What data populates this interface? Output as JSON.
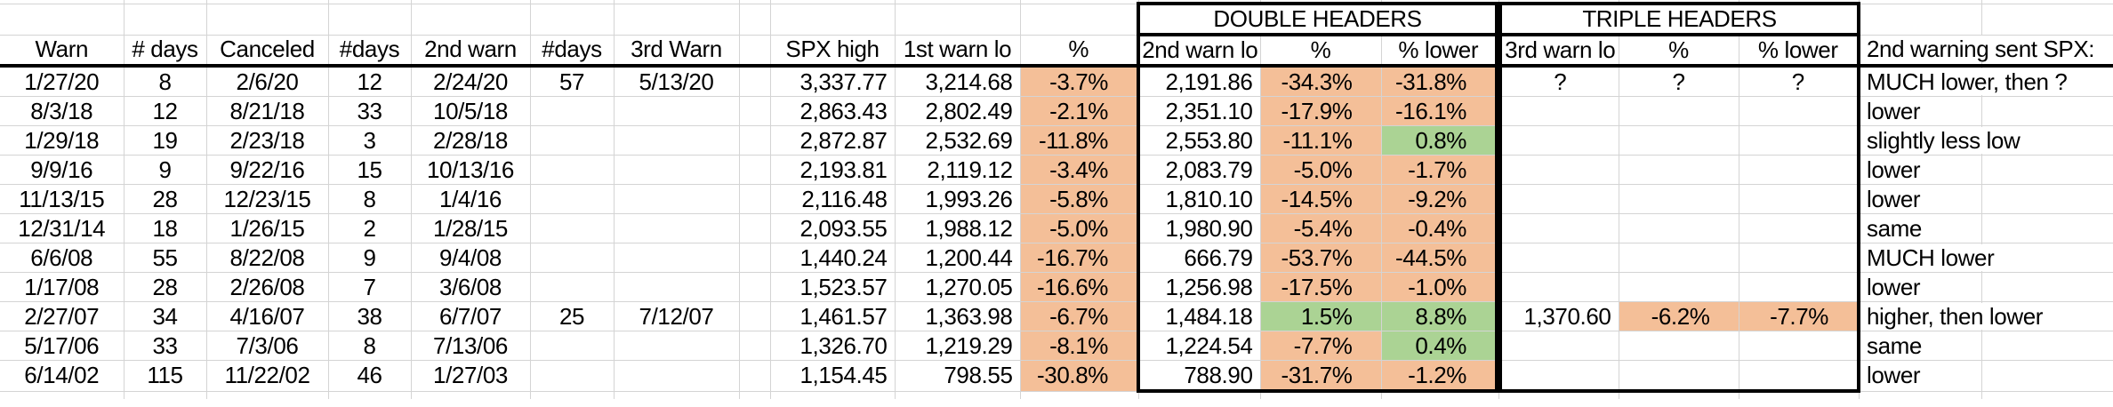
{
  "group_headers": {
    "double": "DOUBLE HEADERS",
    "triple": "TRIPLE HEADERS"
  },
  "columns": {
    "warn": "Warn",
    "days1": "# days",
    "canceled": "Canceled",
    "days2": "#days",
    "warn2": "2nd warn",
    "days3": "#days",
    "warn3": "3rd Warn",
    "spx_high": "SPX high",
    "warn1_lo": "1st warn lo",
    "pct1": "%",
    "warn2_lo": "2nd warn lo",
    "pct2": "%",
    "pct2_lower": "% lower",
    "warn3_lo": "3rd warn lo",
    "pct3": "%",
    "pct3_lower": "% lower",
    "note": "2nd warning sent SPX:"
  },
  "colors": {
    "negative_fill": "#F4BF98",
    "positive_fill": "#ABD394",
    "gridline": "#D4D4D4",
    "heavy_border": "#000000"
  },
  "rows": [
    {
      "warn": "1/27/20",
      "days1": "8",
      "canceled": "2/6/20",
      "days2": "12",
      "warn2": "2/24/20",
      "days3": "57",
      "warn3": "5/13/20",
      "spx_high": "3,337.77",
      "warn1_lo": "3,214.68",
      "pct1": "-3.7%",
      "warn2_lo": "2,191.86",
      "pct2": "-34.3%",
      "pct2_lower": "-31.8%",
      "warn3_lo": "?",
      "pct3": "?",
      "pct3_lower": "?",
      "note": "MUCH lower, then ?",
      "fills": {
        "pct1": "neg",
        "pct2": "neg",
        "pct2_lower": "neg"
      }
    },
    {
      "warn": "8/3/18",
      "days1": "12",
      "canceled": "8/21/18",
      "days2": "33",
      "warn2": "10/5/18",
      "days3": "",
      "warn3": "",
      "spx_high": "2,863.43",
      "warn1_lo": "2,802.49",
      "pct1": "-2.1%",
      "warn2_lo": "2,351.10",
      "pct2": "-17.9%",
      "pct2_lower": "-16.1%",
      "warn3_lo": "",
      "pct3": "",
      "pct3_lower": "",
      "note": "lower",
      "fills": {
        "pct1": "neg",
        "pct2": "neg",
        "pct2_lower": "neg"
      }
    },
    {
      "warn": "1/29/18",
      "days1": "19",
      "canceled": "2/23/18",
      "days2": "3",
      "warn2": "2/28/18",
      "days3": "",
      "warn3": "",
      "spx_high": "2,872.87",
      "warn1_lo": "2,532.69",
      "pct1": "-11.8%",
      "warn2_lo": "2,553.80",
      "pct2": "-11.1%",
      "pct2_lower": "0.8%",
      "warn3_lo": "",
      "pct3": "",
      "pct3_lower": "",
      "note": "slightly less low",
      "fills": {
        "pct1": "neg",
        "pct2": "neg",
        "pct2_lower": "pos"
      }
    },
    {
      "warn": "9/9/16",
      "days1": "9",
      "canceled": "9/22/16",
      "days2": "15",
      "warn2": "10/13/16",
      "days3": "",
      "warn3": "",
      "spx_high": "2,193.81",
      "warn1_lo": "2,119.12",
      "pct1": "-3.4%",
      "warn2_lo": "2,083.79",
      "pct2": "-5.0%",
      "pct2_lower": "-1.7%",
      "warn3_lo": "",
      "pct3": "",
      "pct3_lower": "",
      "note": "lower",
      "fills": {
        "pct1": "neg",
        "pct2": "neg",
        "pct2_lower": "neg"
      }
    },
    {
      "warn": "11/13/15",
      "days1": "28",
      "canceled": "12/23/15",
      "days2": "8",
      "warn2": "1/4/16",
      "days3": "",
      "warn3": "",
      "spx_high": "2,116.48",
      "warn1_lo": "1,993.26",
      "pct1": "-5.8%",
      "warn2_lo": "1,810.10",
      "pct2": "-14.5%",
      "pct2_lower": "-9.2%",
      "warn3_lo": "",
      "pct3": "",
      "pct3_lower": "",
      "note": "lower",
      "fills": {
        "pct1": "neg",
        "pct2": "neg",
        "pct2_lower": "neg"
      }
    },
    {
      "warn": "12/31/14",
      "days1": "18",
      "canceled": "1/26/15",
      "days2": "2",
      "warn2": "1/28/15",
      "days3": "",
      "warn3": "",
      "spx_high": "2,093.55",
      "warn1_lo": "1,988.12",
      "pct1": "-5.0%",
      "warn2_lo": "1,980.90",
      "pct2": "-5.4%",
      "pct2_lower": "-0.4%",
      "warn3_lo": "",
      "pct3": "",
      "pct3_lower": "",
      "note": "same",
      "fills": {
        "pct1": "neg",
        "pct2": "neg",
        "pct2_lower": "neg"
      }
    },
    {
      "warn": "6/6/08",
      "days1": "55",
      "canceled": "8/22/08",
      "days2": "9",
      "warn2": "9/4/08",
      "days3": "",
      "warn3": "",
      "spx_high": "1,440.24",
      "warn1_lo": "1,200.44",
      "pct1": "-16.7%",
      "warn2_lo": "666.79",
      "pct2": "-53.7%",
      "pct2_lower": "-44.5%",
      "warn3_lo": "",
      "pct3": "",
      "pct3_lower": "",
      "note": "MUCH lower",
      "fills": {
        "pct1": "neg",
        "pct2": "neg",
        "pct2_lower": "neg"
      }
    },
    {
      "warn": "1/17/08",
      "days1": "28",
      "canceled": "2/26/08",
      "days2": "7",
      "warn2": "3/6/08",
      "days3": "",
      "warn3": "",
      "spx_high": "1,523.57",
      "warn1_lo": "1,270.05",
      "pct1": "-16.6%",
      "warn2_lo": "1,256.98",
      "pct2": "-17.5%",
      "pct2_lower": "-1.0%",
      "warn3_lo": "",
      "pct3": "",
      "pct3_lower": "",
      "note": "lower",
      "fills": {
        "pct1": "neg",
        "pct2": "neg",
        "pct2_lower": "neg"
      }
    },
    {
      "warn": "2/27/07",
      "days1": "34",
      "canceled": "4/16/07",
      "days2": "38",
      "warn2": "6/7/07",
      "days3": "25",
      "warn3": "7/12/07",
      "spx_high": "1,461.57",
      "warn1_lo": "1,363.98",
      "pct1": "-6.7%",
      "warn2_lo": "1,484.18",
      "pct2": "1.5%",
      "pct2_lower": "8.8%",
      "warn3_lo": "1,370.60",
      "pct3": "-6.2%",
      "pct3_lower": "-7.7%",
      "note": "higher, then lower",
      "fills": {
        "pct1": "neg",
        "pct2": "pos",
        "pct2_lower": "pos",
        "pct3": "neg",
        "pct3_lower": "neg"
      }
    },
    {
      "warn": "5/17/06",
      "days1": "33",
      "canceled": "7/3/06",
      "days2": "8",
      "warn2": "7/13/06",
      "days3": "",
      "warn3": "",
      "spx_high": "1,326.70",
      "warn1_lo": "1,219.29",
      "pct1": "-8.1%",
      "warn2_lo": "1,224.54",
      "pct2": "-7.7%",
      "pct2_lower": "0.4%",
      "warn3_lo": "",
      "pct3": "",
      "pct3_lower": "",
      "note": "same",
      "fills": {
        "pct1": "neg",
        "pct2": "neg",
        "pct2_lower": "pos"
      }
    },
    {
      "warn": "6/14/02",
      "days1": "115",
      "canceled": "11/22/02",
      "days2": "46",
      "warn2": "1/27/03",
      "days3": "",
      "warn3": "",
      "spx_high": "1,154.45",
      "warn1_lo": "798.55",
      "pct1": "-30.8%",
      "warn2_lo": "788.90",
      "pct2": "-31.7%",
      "pct2_lower": "-1.2%",
      "warn3_lo": "",
      "pct3": "",
      "pct3_lower": "",
      "note": "lower",
      "fills": {
        "pct1": "neg",
        "pct2": "neg",
        "pct2_lower": "neg"
      }
    }
  ]
}
